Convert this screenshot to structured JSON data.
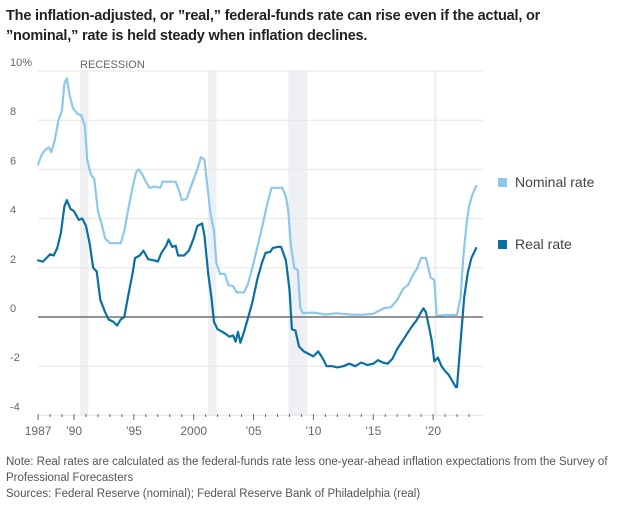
{
  "title": "The inflation-adjusted, or ”real,” federal-funds rate can rise even if the actual, or ”nominal,” rate is held steady when inflation declines.",
  "note": "Note: Real rates are calculated as the federal-funds rate less one-year-ahead inflation expectations from the Survey of Professional Forecasters",
  "sources": "Sources: Federal Reserve (nominal); Federal Reserve Bank of Philadelphia (real)",
  "colors": {
    "nominal": "#8ec7ec",
    "real": "#0a6fa3",
    "recession": "#eef0f3",
    "grid": "#e6e6e6",
    "zero": "#555555"
  },
  "chart_data": {
    "type": "line",
    "title": "The inflation-adjusted, or ”real,” federal-funds rate can rise even if the actual, or ”nominal,” rate is held steady when inflation declines.",
    "xlabel": "",
    "ylabel": "",
    "xlim": [
      1987,
      2023.6
    ],
    "ylim": [
      -4,
      10
    ],
    "grid": true,
    "legend_position": "right",
    "y_ticks": [
      {
        "value": 10,
        "label": "10%"
      },
      {
        "value": 8,
        "label": "8"
      },
      {
        "value": 6,
        "label": "6"
      },
      {
        "value": 4,
        "label": "4"
      },
      {
        "value": 2,
        "label": "2"
      },
      {
        "value": 0,
        "label": "0"
      },
      {
        "value": -2,
        "label": "-2"
      },
      {
        "value": -4,
        "label": "-4"
      }
    ],
    "x_ticks": [
      {
        "value": 1987,
        "label": "1987"
      },
      {
        "value": 1990,
        "label": "’90"
      },
      {
        "value": 1995,
        "label": "’95"
      },
      {
        "value": 2000,
        "label": "2000"
      },
      {
        "value": 2005,
        "label": "’05"
      },
      {
        "value": 2010,
        "label": "’10"
      },
      {
        "value": 2015,
        "label": "’15"
      },
      {
        "value": 2020,
        "label": "’20"
      }
    ],
    "recession_label": "RECESSION",
    "recessions": [
      [
        1990.5,
        1991.2
      ],
      [
        2001.2,
        2001.9
      ],
      [
        2007.9,
        2009.5
      ],
      [
        2020.1,
        2020.3
      ]
    ],
    "series": [
      {
        "name": "Nominal rate",
        "points": [
          [
            1987.0,
            6.2
          ],
          [
            1987.3,
            6.6
          ],
          [
            1987.6,
            6.8
          ],
          [
            1987.9,
            6.9
          ],
          [
            1988.1,
            6.7
          ],
          [
            1988.4,
            7.2
          ],
          [
            1988.7,
            8.0
          ],
          [
            1989.0,
            8.4
          ],
          [
            1989.2,
            9.5
          ],
          [
            1989.4,
            9.7
          ],
          [
            1989.6,
            9.1
          ],
          [
            1989.9,
            8.5
          ],
          [
            1990.3,
            8.25
          ],
          [
            1990.6,
            8.2
          ],
          [
            1990.9,
            7.8
          ],
          [
            1991.1,
            6.4
          ],
          [
            1991.4,
            5.8
          ],
          [
            1991.7,
            5.6
          ],
          [
            1992.0,
            4.3
          ],
          [
            1992.3,
            3.8
          ],
          [
            1992.6,
            3.2
          ],
          [
            1993.0,
            3.0
          ],
          [
            1993.5,
            3.0
          ],
          [
            1993.9,
            3.0
          ],
          [
            1994.2,
            3.5
          ],
          [
            1994.5,
            4.3
          ],
          [
            1994.9,
            5.3
          ],
          [
            1995.2,
            5.9
          ],
          [
            1995.4,
            6.0
          ],
          [
            1995.7,
            5.8
          ],
          [
            1996.0,
            5.5
          ],
          [
            1996.3,
            5.25
          ],
          [
            1996.8,
            5.3
          ],
          [
            1997.2,
            5.25
          ],
          [
            1997.4,
            5.5
          ],
          [
            1997.7,
            5.5
          ],
          [
            1998.5,
            5.5
          ],
          [
            1998.8,
            5.1
          ],
          [
            1999.0,
            4.75
          ],
          [
            1999.4,
            4.8
          ],
          [
            1999.7,
            5.2
          ],
          [
            2000.0,
            5.6
          ],
          [
            2000.3,
            6.0
          ],
          [
            2000.6,
            6.5
          ],
          [
            2000.9,
            6.4
          ],
          [
            2001.1,
            5.5
          ],
          [
            2001.4,
            4.2
          ],
          [
            2001.7,
            3.5
          ],
          [
            2001.9,
            2.2
          ],
          [
            2002.2,
            1.75
          ],
          [
            2002.6,
            1.75
          ],
          [
            2002.9,
            1.3
          ],
          [
            2003.3,
            1.25
          ],
          [
            2003.6,
            1.0
          ],
          [
            2004.2,
            1.0
          ],
          [
            2004.5,
            1.3
          ],
          [
            2004.9,
            2.0
          ],
          [
            2005.3,
            2.8
          ],
          [
            2005.7,
            3.6
          ],
          [
            2006.1,
            4.5
          ],
          [
            2006.5,
            5.25
          ],
          [
            2006.9,
            5.25
          ],
          [
            2007.4,
            5.25
          ],
          [
            2007.7,
            4.9
          ],
          [
            2007.9,
            4.3
          ],
          [
            2008.1,
            3.0
          ],
          [
            2008.4,
            2.0
          ],
          [
            2008.7,
            1.9
          ],
          [
            2008.9,
            0.4
          ],
          [
            2009.1,
            0.16
          ],
          [
            2010.0,
            0.18
          ],
          [
            2011.0,
            0.1
          ],
          [
            2012.0,
            0.15
          ],
          [
            2013.0,
            0.1
          ],
          [
            2014.0,
            0.09
          ],
          [
            2015.0,
            0.13
          ],
          [
            2015.9,
            0.36
          ],
          [
            2016.5,
            0.4
          ],
          [
            2017.0,
            0.7
          ],
          [
            2017.5,
            1.15
          ],
          [
            2017.9,
            1.3
          ],
          [
            2018.3,
            1.7
          ],
          [
            2018.7,
            2.0
          ],
          [
            2019.0,
            2.4
          ],
          [
            2019.4,
            2.4
          ],
          [
            2019.8,
            1.6
          ],
          [
            2020.1,
            1.5
          ],
          [
            2020.3,
            0.05
          ],
          [
            2021.0,
            0.08
          ],
          [
            2022.0,
            0.08
          ],
          [
            2022.3,
            0.8
          ],
          [
            2022.5,
            2.3
          ],
          [
            2022.8,
            3.8
          ],
          [
            2023.0,
            4.5
          ],
          [
            2023.3,
            5.0
          ],
          [
            2023.6,
            5.33
          ]
        ]
      },
      {
        "name": "Real rate",
        "points": [
          [
            1987.0,
            2.3
          ],
          [
            1987.4,
            2.25
          ],
          [
            1987.7,
            2.4
          ],
          [
            1988.0,
            2.55
          ],
          [
            1988.3,
            2.5
          ],
          [
            1988.6,
            2.8
          ],
          [
            1988.9,
            3.4
          ],
          [
            1989.2,
            4.5
          ],
          [
            1989.4,
            4.75
          ],
          [
            1989.7,
            4.4
          ],
          [
            1990.0,
            4.3
          ],
          [
            1990.4,
            3.95
          ],
          [
            1990.7,
            4.0
          ],
          [
            1991.0,
            3.7
          ],
          [
            1991.3,
            3.0
          ],
          [
            1991.6,
            2.0
          ],
          [
            1991.9,
            1.85
          ],
          [
            1992.2,
            0.7
          ],
          [
            1992.6,
            0.2
          ],
          [
            1992.9,
            -0.1
          ],
          [
            1993.3,
            -0.2
          ],
          [
            1993.6,
            -0.35
          ],
          [
            1993.9,
            -0.1
          ],
          [
            1994.2,
            0.0
          ],
          [
            1994.5,
            0.8
          ],
          [
            1994.9,
            1.8
          ],
          [
            1995.1,
            2.4
          ],
          [
            1995.5,
            2.5
          ],
          [
            1995.8,
            2.7
          ],
          [
            1996.2,
            2.35
          ],
          [
            1996.7,
            2.3
          ],
          [
            1997.0,
            2.25
          ],
          [
            1997.3,
            2.6
          ],
          [
            1997.7,
            2.9
          ],
          [
            1997.9,
            3.15
          ],
          [
            1998.2,
            2.85
          ],
          [
            1998.5,
            2.9
          ],
          [
            1998.7,
            2.5
          ],
          [
            1999.2,
            2.5
          ],
          [
            1999.6,
            2.7
          ],
          [
            2000.0,
            3.2
          ],
          [
            2000.3,
            3.7
          ],
          [
            2000.7,
            3.8
          ],
          [
            2000.9,
            3.3
          ],
          [
            2001.2,
            1.8
          ],
          [
            2001.5,
            0.7
          ],
          [
            2001.7,
            -0.2
          ],
          [
            2002.0,
            -0.5
          ],
          [
            2002.4,
            -0.6
          ],
          [
            2002.7,
            -0.7
          ],
          [
            2003.0,
            -0.8
          ],
          [
            2003.3,
            -0.75
          ],
          [
            2003.5,
            -1.0
          ],
          [
            2003.7,
            -0.6
          ],
          [
            2003.9,
            -1.05
          ],
          [
            2004.2,
            -0.6
          ],
          [
            2004.5,
            -0.1
          ],
          [
            2004.9,
            0.6
          ],
          [
            2005.3,
            1.5
          ],
          [
            2005.7,
            2.2
          ],
          [
            2006.0,
            2.6
          ],
          [
            2006.4,
            2.65
          ],
          [
            2006.6,
            2.8
          ],
          [
            2007.0,
            2.85
          ],
          [
            2007.3,
            2.85
          ],
          [
            2007.7,
            2.3
          ],
          [
            2008.0,
            1.1
          ],
          [
            2008.2,
            -0.5
          ],
          [
            2008.5,
            -0.55
          ],
          [
            2008.8,
            -1.2
          ],
          [
            2009.2,
            -1.4
          ],
          [
            2009.6,
            -1.5
          ],
          [
            2010.0,
            -1.6
          ],
          [
            2010.4,
            -1.4
          ],
          [
            2010.8,
            -1.7
          ],
          [
            2011.1,
            -2.0
          ],
          [
            2011.6,
            -2.0
          ],
          [
            2012.0,
            -2.05
          ],
          [
            2012.5,
            -2.0
          ],
          [
            2013.0,
            -1.9
          ],
          [
            2013.5,
            -2.0
          ],
          [
            2014.0,
            -1.85
          ],
          [
            2014.5,
            -1.95
          ],
          [
            2015.0,
            -1.9
          ],
          [
            2015.4,
            -1.75
          ],
          [
            2015.8,
            -1.85
          ],
          [
            2016.2,
            -1.9
          ],
          [
            2016.6,
            -1.7
          ],
          [
            2017.0,
            -1.3
          ],
          [
            2017.4,
            -1.0
          ],
          [
            2017.8,
            -0.7
          ],
          [
            2018.2,
            -0.4
          ],
          [
            2018.6,
            -0.15
          ],
          [
            2019.0,
            0.2
          ],
          [
            2019.2,
            0.35
          ],
          [
            2019.4,
            0.2
          ],
          [
            2019.7,
            -0.5
          ],
          [
            2019.9,
            -1.0
          ],
          [
            2020.1,
            -1.8
          ],
          [
            2020.4,
            -1.65
          ],
          [
            2020.7,
            -2.0
          ],
          [
            2021.0,
            -2.2
          ],
          [
            2021.3,
            -2.35
          ],
          [
            2021.6,
            -2.6
          ],
          [
            2021.9,
            -2.85
          ],
          [
            2022.0,
            -2.85
          ],
          [
            2022.3,
            -1.0
          ],
          [
            2022.6,
            0.8
          ],
          [
            2022.9,
            1.8
          ],
          [
            2023.2,
            2.4
          ],
          [
            2023.6,
            2.8
          ]
        ]
      }
    ]
  }
}
